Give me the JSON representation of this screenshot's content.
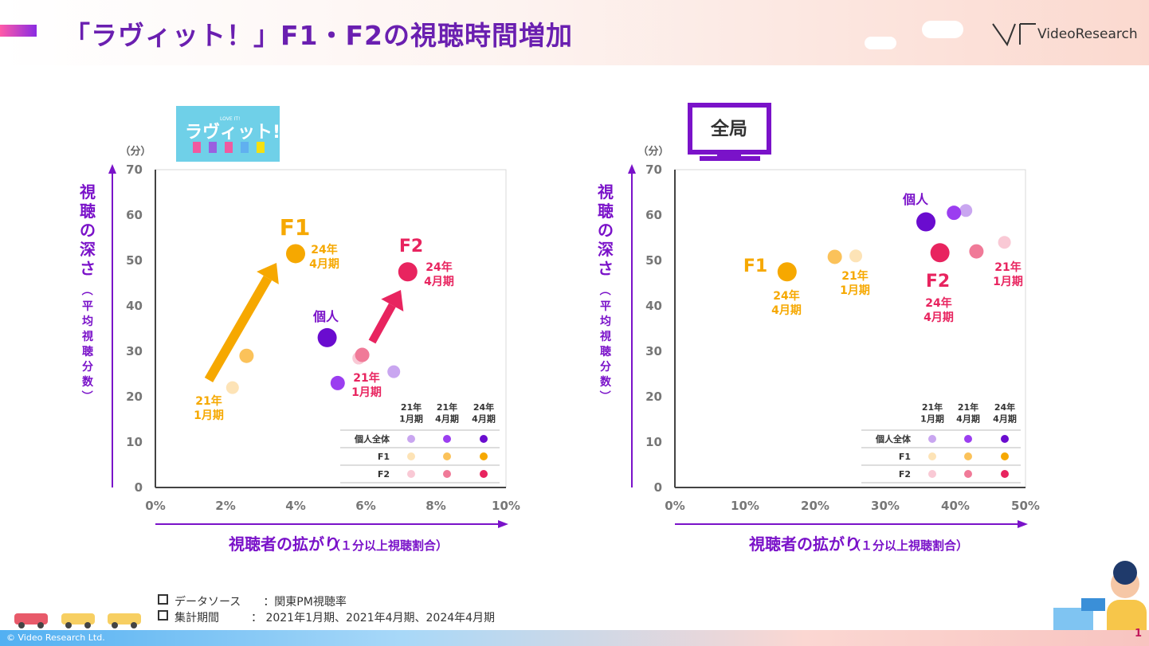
{
  "header": {
    "title": "「ラヴィット！」F1・F2の視聴時間増加",
    "logo_text": "VideoResearch"
  },
  "badges": {
    "left_logo_text": "ラヴィット!",
    "left_logo_small": "LOVE IT!",
    "right_badge": "全局"
  },
  "footer": {
    "copyright": "© Video Research Ltd.",
    "page_number": "1"
  },
  "source_notes": [
    {
      "label": "データソース",
      "value": "：関東PM視聴率"
    },
    {
      "label": "集計期間",
      "value": "： 2021年1月期、2021年4月期、2024年4月期"
    }
  ],
  "colors": {
    "purple": "#7a12c9",
    "f1": "#f6a800",
    "f2": "#e8245f"
  },
  "legend": {
    "headers": [
      "21年\n1月期",
      "21年\n4月期",
      "24年\n4月期"
    ],
    "rows": [
      {
        "label": "個人全体",
        "colors": [
          "#c9a6f0",
          "#9b3ef0",
          "#6a0ccf"
        ]
      },
      {
        "label": "F1",
        "colors": [
          "#fde3b6",
          "#fbc25a",
          "#f6a800"
        ]
      },
      {
        "label": "F2",
        "colors": [
          "#f9c9d5",
          "#f07a98",
          "#e8245f"
        ]
      }
    ]
  },
  "chart_data": [
    {
      "type": "scatter",
      "title": "ラヴィット!",
      "ylabel": "視聴の深さ（平均視聴分数）",
      "yunit": "（分）",
      "xlabel": "視聴者の拡がり",
      "xlabel_note": "（１分以上視聴割合）",
      "xlim": [
        0,
        10
      ],
      "ylim": [
        0,
        70
      ],
      "xticks": [
        "0%",
        "2%",
        "4%",
        "6%",
        "8%",
        "10%"
      ],
      "yticks": [
        "0",
        "10",
        "20",
        "30",
        "40",
        "50",
        "60",
        "70"
      ],
      "series": [
        {
          "name": "個人全体",
          "points": [
            {
              "period": "21年1月期",
              "x": 6.8,
              "y": 25.5,
              "color": "#c9a6f0"
            },
            {
              "period": "21年4月期",
              "x": 5.2,
              "y": 23,
              "color": "#9b3ef0"
            },
            {
              "period": "24年4月期",
              "x": 4.9,
              "y": 33,
              "color": "#6a0ccf"
            }
          ]
        },
        {
          "name": "F1",
          "points": [
            {
              "period": "21年1月期",
              "x": 2.2,
              "y": 22,
              "color": "#fde3b6"
            },
            {
              "period": "21年4月期",
              "x": 2.6,
              "y": 29,
              "color": "#fbc25a"
            },
            {
              "period": "24年4月期",
              "x": 4.0,
              "y": 51.5,
              "color": "#f6a800"
            }
          ]
        },
        {
          "name": "F2",
          "points": [
            {
              "period": "21年1月期",
              "x": 5.8,
              "y": 28.5,
              "color": "#f9c9d5"
            },
            {
              "period": "21年4月期",
              "x": 5.9,
              "y": 29.2,
              "color": "#f07a98"
            },
            {
              "period": "24年4月期",
              "x": 7.2,
              "y": 47.5,
              "color": "#e8245f"
            }
          ]
        }
      ],
      "annotations": [
        {
          "text": "F1",
          "color": "#f6a800"
        },
        {
          "text": "24年\n4月期",
          "color": "#f6a800"
        },
        {
          "text": "21年\n1月期",
          "color": "#f6a800"
        },
        {
          "text": "F2",
          "color": "#e8245f"
        },
        {
          "text": "24年\n4月期",
          "color": "#e8245f"
        },
        {
          "text": "21年\n1月期",
          "color": "#e8245f"
        },
        {
          "text": "個人",
          "color": "#7a12c9"
        }
      ]
    },
    {
      "type": "scatter",
      "title": "全局",
      "ylabel": "視聴の深さ（平均視聴分数）",
      "yunit": "（分）",
      "xlabel": "視聴者の拡がり",
      "xlabel_note": "（１分以上視聴割合）",
      "xlim": [
        0,
        50
      ],
      "ylim": [
        0,
        70
      ],
      "xticks": [
        "0%",
        "10%",
        "20%",
        "30%",
        "40%",
        "50%"
      ],
      "yticks": [
        "0",
        "10",
        "20",
        "30",
        "40",
        "50",
        "60",
        "70"
      ],
      "series": [
        {
          "name": "個人全体",
          "points": [
            {
              "period": "21年1月期",
              "x": 41.5,
              "y": 61,
              "color": "#c9a6f0"
            },
            {
              "period": "21年4月期",
              "x": 39.8,
              "y": 60.5,
              "color": "#9b3ef0"
            },
            {
              "period": "24年4月期",
              "x": 35.8,
              "y": 58.5,
              "color": "#6a0ccf"
            }
          ]
        },
        {
          "name": "F1",
          "points": [
            {
              "period": "21年1月期",
              "x": 25.8,
              "y": 51,
              "color": "#fde3b6"
            },
            {
              "period": "21年4月期",
              "x": 22.8,
              "y": 50.8,
              "color": "#fbc25a"
            },
            {
              "period": "24年4月期",
              "x": 16,
              "y": 47.5,
              "color": "#f6a800"
            }
          ]
        },
        {
          "name": "F2",
          "points": [
            {
              "period": "21年1月期",
              "x": 47,
              "y": 54,
              "color": "#f9c9d5"
            },
            {
              "period": "21年4月期",
              "x": 43,
              "y": 52,
              "color": "#f07a98"
            },
            {
              "period": "24年4月期",
              "x": 37.8,
              "y": 51.7,
              "color": "#e8245f"
            }
          ]
        }
      ],
      "annotations": [
        {
          "text": "F1",
          "color": "#f6a800"
        },
        {
          "text": "24年\n4月期",
          "color": "#f6a800"
        },
        {
          "text": "21年\n1月期",
          "color": "#f6a800"
        },
        {
          "text": "F2",
          "color": "#e8245f"
        },
        {
          "text": "24年\n4月期",
          "color": "#e8245f"
        },
        {
          "text": "21年\n1月期",
          "color": "#e8245f"
        },
        {
          "text": "個人",
          "color": "#7a12c9"
        }
      ]
    }
  ]
}
